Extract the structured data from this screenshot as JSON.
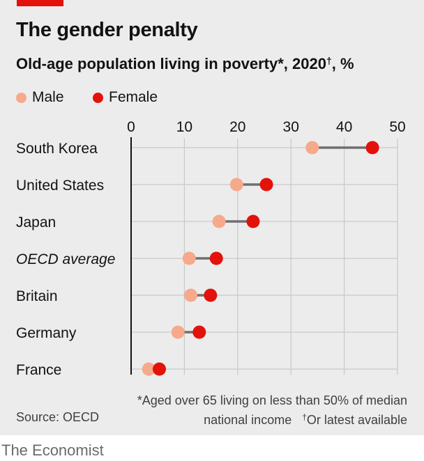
{
  "header": {
    "title": "The gender penalty",
    "subtitle": "Old-age population living in poverty*, 2020",
    "subtitle_mark": "†",
    "subtitle_unit": ", %"
  },
  "legend": {
    "male": "Male",
    "female": "Female"
  },
  "footer": {
    "source": "Source: OECD",
    "note_line1": "*Aged over 65 living on less than 50% of median",
    "note_line2": "national income",
    "note_mark": "†",
    "note_line2_rest": "Or latest available",
    "brand": "The Economist"
  },
  "colors": {
    "male": "#f7a98b",
    "female": "#e3120b",
    "connector": "#6f6f6f",
    "grid": "#c8c8c8",
    "axis": "#121212",
    "brand_red": "#e3120b"
  },
  "chart_data": {
    "type": "dumbbell",
    "title": "The gender penalty",
    "subtitle": "Old-age population living in poverty*, 2020†, %",
    "xlim": [
      0,
      50
    ],
    "x_ticks": [
      0,
      10,
      20,
      30,
      40,
      50
    ],
    "grid": true,
    "legend_position": "top-left",
    "categories": [
      "South Korea",
      "United States",
      "Japan",
      "OECD average",
      "Britain",
      "Germany",
      "France"
    ],
    "italic_categories": [
      "OECD average"
    ],
    "series": [
      {
        "name": "Male",
        "values": [
          34.0,
          19.8,
          16.5,
          10.9,
          11.2,
          8.8,
          3.3
        ]
      },
      {
        "name": "Female",
        "values": [
          45.3,
          25.4,
          22.9,
          16.0,
          14.9,
          12.8,
          5.3
        ]
      }
    ]
  }
}
